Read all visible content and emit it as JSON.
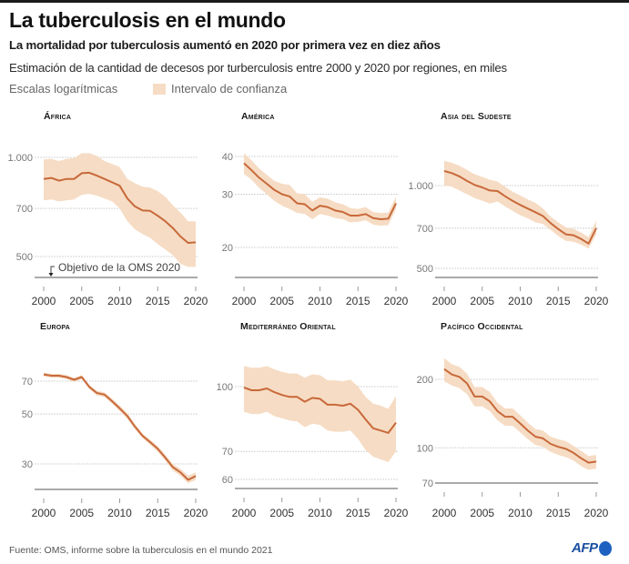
{
  "header": {
    "title": "La tuberculosis en el mundo",
    "subtitle": "La mortalidad por tuberculosis aumentó en 2020 por primera vez en diez años",
    "description": "Estimación de la cantidad de decesos por turberculosis entre 2000 y 2020 por regiones, en miles",
    "scale_note": "Escalas logarítmicas",
    "legend_label": "Intervalo de confianza"
  },
  "colors": {
    "line": "#c8693a",
    "band": "#f6dcc4",
    "grid": "#d4d4d4",
    "baseline": "#777777",
    "logo": "#1a4fa0"
  },
  "footer": {
    "source": "Fuente: OMS, informe sobre la tuberculosis en el mundo 2021",
    "logo_text": "AFP"
  },
  "chart_data": [
    {
      "type": "area",
      "title": "África",
      "scale": "log",
      "ylim": [
        440,
        1040
      ],
      "yticks": [
        500,
        700,
        1000
      ],
      "ytick_labels": [
        "500",
        "700",
        "1.000"
      ],
      "x": [
        2000,
        2001,
        2002,
        2003,
        2004,
        2005,
        2006,
        2007,
        2008,
        2009,
        2010,
        2011,
        2012,
        2013,
        2014,
        2015,
        2016,
        2017,
        2018,
        2019,
        2020
      ],
      "xtick_labels": [
        "2000",
        "2005",
        "2010",
        "2015",
        "2020"
      ],
      "annotation": "Objetivo de la OMS 2020",
      "annotation_value": 440,
      "values": [
        860,
        866,
        850,
        860,
        860,
        895,
        898,
        880,
        860,
        840,
        820,
        750,
        710,
        690,
        688,
        665,
        640,
        610,
        575,
        550,
        552
      ],
      "lower": [
        740,
        745,
        735,
        740,
        745,
        770,
        775,
        765,
        750,
        735,
        700,
        640,
        605,
        585,
        570,
        545,
        525,
        505,
        475,
        465,
        465
      ],
      "upper": [
        985,
        990,
        975,
        990,
        995,
        1030,
        1030,
        1010,
        975,
        955,
        935,
        860,
        835,
        815,
        810,
        790,
        760,
        715,
        680,
        640,
        640
      ]
    },
    {
      "type": "area",
      "title": "América",
      "scale": "log",
      "ylim": [
        16,
        42
      ],
      "yticks": [
        20,
        30,
        40
      ],
      "ytick_labels": [
        "20",
        "30",
        "40"
      ],
      "x": [
        2000,
        2001,
        2002,
        2003,
        2004,
        2005,
        2006,
        2007,
        2008,
        2009,
        2010,
        2011,
        2012,
        2013,
        2014,
        2015,
        2016,
        2017,
        2018,
        2019,
        2020
      ],
      "xtick_labels": [
        "2000",
        "2005",
        "2010",
        "2015",
        "2020"
      ],
      "values": [
        38,
        36,
        34,
        32.5,
        31,
        30,
        29.5,
        28,
        27.8,
        26.5,
        27.5,
        27.2,
        26.5,
        26.2,
        25.5,
        25.5,
        25.8,
        25,
        24.8,
        24.9,
        28
      ],
      "lower": [
        35,
        33.5,
        31.5,
        30,
        28.5,
        27.5,
        26.8,
        26,
        25.8,
        24.8,
        25.8,
        25.5,
        25,
        24.8,
        24.2,
        24.3,
        24.6,
        23.8,
        23.6,
        23.7,
        26.8
      ],
      "upper": [
        41,
        38.8,
        36.5,
        34.8,
        33.2,
        32.5,
        32.2,
        30.2,
        30,
        28.3,
        29.3,
        29,
        28.2,
        27.8,
        27,
        26.8,
        27.2,
        26.2,
        26,
        26.1,
        29.4
      ]
    },
    {
      "type": "area",
      "title": "Asia del Sudeste",
      "scale": "log",
      "ylim": [
        470,
        1250
      ],
      "yticks": [
        500,
        700,
        1000
      ],
      "ytick_labels": [
        "500",
        "700",
        "1.000"
      ],
      "x": [
        2000,
        2001,
        2002,
        2003,
        2004,
        2005,
        2006,
        2007,
        2008,
        2009,
        2010,
        2011,
        2012,
        2013,
        2014,
        2015,
        2016,
        2017,
        2018,
        2019,
        2020
      ],
      "xtick_labels": [
        "2000",
        "2005",
        "2010",
        "2015",
        "2020"
      ],
      "values": [
        1130,
        1110,
        1080,
        1040,
        1005,
        985,
        960,
        955,
        915,
        880,
        850,
        825,
        800,
        775,
        730,
        695,
        665,
        660,
        640,
        615,
        700
      ],
      "lower": [
        1000,
        990,
        960,
        930,
        900,
        880,
        860,
        875,
        840,
        810,
        780,
        760,
        735,
        725,
        690,
        655,
        630,
        625,
        610,
        590,
        665
      ],
      "upper": [
        1230,
        1210,
        1180,
        1140,
        1100,
        1075,
        1050,
        1035,
        990,
        950,
        920,
        890,
        865,
        825,
        770,
        735,
        705,
        695,
        675,
        650,
        745
      ]
    },
    {
      "type": "area",
      "title": "Europa",
      "scale": "log",
      "ylim": [
        23,
        80
      ],
      "yticks": [
        30,
        50,
        70
      ],
      "ytick_labels": [
        "30",
        "50",
        "70"
      ],
      "x": [
        2000,
        2001,
        2002,
        2003,
        2004,
        2005,
        2006,
        2007,
        2008,
        2009,
        2010,
        2011,
        2012,
        2013,
        2014,
        2015,
        2016,
        2017,
        2018,
        2019,
        2020
      ],
      "xtick_labels": [
        "2000",
        "2005",
        "2010",
        "2015",
        "2020"
      ],
      "values": [
        75,
        74,
        74,
        73,
        71,
        73,
        66,
        62,
        61,
        57,
        53,
        49,
        44,
        40,
        37.5,
        35,
        32,
        29,
        27.5,
        25.5,
        26.5
      ],
      "lower": [
        73.5,
        72.5,
        72.5,
        71.5,
        69.5,
        71.5,
        64.5,
        60.5,
        59.5,
        55.5,
        51.5,
        47.5,
        42.8,
        39,
        36.5,
        34,
        31,
        28,
        26.5,
        24.6,
        25.5
      ],
      "upper": [
        76.5,
        75.5,
        75.5,
        74.5,
        72.5,
        74.5,
        67.5,
        63.5,
        62.5,
        58.5,
        54.5,
        50.5,
        45.2,
        41,
        38.5,
        36,
        33,
        30,
        28.5,
        26.6,
        27.5
      ]
    },
    {
      "type": "area",
      "title": "Mediterráneo Oriental",
      "scale": "log",
      "ylim": [
        57,
        112
      ],
      "yticks": [
        60,
        70,
        100
      ],
      "ytick_labels": [
        "60",
        "70",
        "100"
      ],
      "x": [
        2000,
        2001,
        2002,
        2003,
        2004,
        2005,
        2006,
        2007,
        2008,
        2009,
        2010,
        2011,
        2012,
        2013,
        2014,
        2015,
        2016,
        2017,
        2018,
        2019,
        2020
      ],
      "xtick_labels": [
        "2000",
        "2005",
        "2010",
        "2015",
        "2020"
      ],
      "values": [
        99.5,
        98,
        98,
        99,
        97,
        95.5,
        94.5,
        94.5,
        92,
        94,
        93.5,
        90.5,
        90.5,
        90,
        91,
        88,
        83.5,
        79.5,
        78.5,
        77.5,
        82
      ],
      "lower": [
        87,
        86,
        86,
        87,
        85,
        84,
        83,
        82.5,
        80,
        81.5,
        81,
        78.5,
        78,
        78,
        78.5,
        75,
        70.5,
        68,
        67,
        66,
        70
      ],
      "upper": [
        112,
        111,
        111,
        112,
        110,
        108.5,
        107.5,
        107.5,
        105,
        107,
        106.5,
        103.5,
        103.5,
        103,
        104,
        100,
        94.5,
        91,
        90,
        88.5,
        95
      ]
    },
    {
      "type": "area",
      "title": "Pacífico Occidental",
      "scale": "log",
      "ylim": [
        70,
        245
      ],
      "yticks": [
        70,
        100,
        200
      ],
      "ytick_labels": [
        "70",
        "100",
        "200"
      ],
      "x": [
        2000,
        2001,
        2002,
        2003,
        2004,
        2005,
        2006,
        2007,
        2008,
        2009,
        2010,
        2011,
        2012,
        2013,
        2014,
        2015,
        2016,
        2017,
        2018,
        2019,
        2020
      ],
      "xtick_labels": [
        "2000",
        "2005",
        "2010",
        "2015",
        "2020"
      ],
      "values": [
        222,
        210,
        205,
        192,
        168,
        168,
        160,
        145,
        137,
        137,
        128,
        119,
        112,
        110,
        104,
        101,
        99,
        95,
        90,
        86,
        87
      ],
      "lower": [
        196,
        188,
        183,
        172,
        152,
        152,
        145,
        132,
        125,
        125,
        117,
        109,
        103,
        101,
        96,
        93,
        91,
        88,
        83,
        80,
        81
      ],
      "upper": [
        248,
        233,
        227,
        212,
        185,
        185,
        176,
        158,
        149,
        149,
        139,
        129,
        121,
        119,
        112,
        109,
        107,
        102,
        97,
        92,
        93
      ]
    }
  ]
}
